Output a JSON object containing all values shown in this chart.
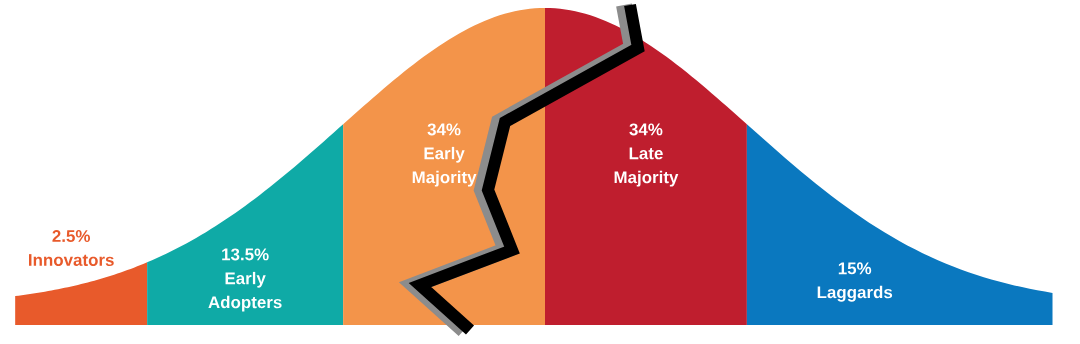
{
  "chart_data": {
    "type": "other",
    "categories": [
      "Innovators",
      "Early Adopters",
      "Early Majority",
      "Late Majority",
      "Laggards"
    ],
    "values": [
      2.5,
      13.5,
      34,
      34,
      15
    ],
    "value_labels": [
      "2.5%",
      "13.5%",
      "34%",
      "34%",
      "15%"
    ],
    "colors": [
      "#e85a2b",
      "#0faaa6",
      "#f3944a",
      "#bf1e2e",
      "#0a78bf"
    ]
  }
}
